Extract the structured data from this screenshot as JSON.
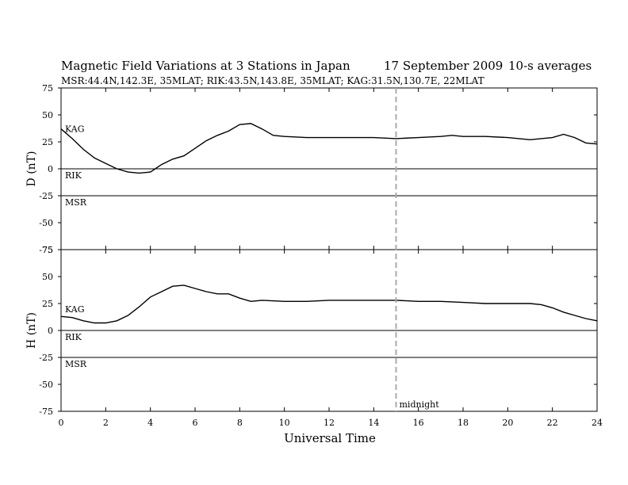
{
  "header": {
    "title": "Magnetic Field Variations at 3 Stations in Japan",
    "date": "17 September 2009",
    "averaging": "10-s averages",
    "stations_line": "MSR:44.4N,142.3E, 35MLAT;  RIK:43.5N,143.8E, 35MLAT;  KAG:31.5N,130.7E, 22MLAT"
  },
  "chart_data": [
    {
      "type": "line",
      "panel": "D",
      "ylabel": "D (nT)",
      "xlabel": "",
      "xlim": [
        0,
        24
      ],
      "ylim": [
        -75,
        75
      ],
      "y_ticks": [
        "75",
        "50",
        "25",
        "0",
        "-25",
        "-50",
        "-75"
      ],
      "x_ticks": [
        "0",
        "2",
        "4",
        "6",
        "8",
        "10",
        "12",
        "14",
        "16",
        "18",
        "20",
        "22",
        "24"
      ],
      "series": [
        {
          "name": "KAG",
          "color": "#000000",
          "x": [
            0,
            0.5,
            1,
            1.5,
            2,
            2.5,
            3,
            3.5,
            4,
            4.5,
            5,
            5.5,
            6,
            6.5,
            7,
            7.5,
            8,
            8.5,
            9,
            9.5,
            10,
            11,
            12,
            13,
            14,
            15,
            16,
            17,
            17.5,
            18,
            19,
            20,
            21,
            22,
            22.5,
            23,
            23.5,
            24
          ],
          "y": [
            37,
            28,
            18,
            10,
            5,
            0,
            -3,
            -4,
            -3,
            4,
            9,
            12,
            19,
            26,
            31,
            35,
            41,
            42,
            37,
            31,
            30,
            29,
            29,
            29,
            29,
            28,
            29,
            30,
            31,
            30,
            30,
            29,
            27,
            29,
            32,
            29,
            24,
            23
          ]
        },
        {
          "name": "RIK",
          "color": "#000000",
          "x": [
            0,
            24
          ],
          "y": [
            0,
            0
          ]
        },
        {
          "name": "MSR",
          "color": "#000000",
          "x": [
            0,
            24
          ],
          "y": [
            -25,
            -25
          ]
        }
      ]
    },
    {
      "type": "line",
      "panel": "H",
      "ylabel": "H (nT)",
      "xlabel": "Universal Time",
      "xlim": [
        0,
        24
      ],
      "ylim": [
        -75,
        75
      ],
      "y_ticks": [
        "75",
        "50",
        "25",
        "0",
        "-25",
        "-50",
        "-75"
      ],
      "x_ticks": [
        "0",
        "2",
        "4",
        "6",
        "8",
        "10",
        "12",
        "14",
        "16",
        "18",
        "20",
        "22",
        "24"
      ],
      "series": [
        {
          "name": "KAG",
          "color": "#000000",
          "x": [
            0,
            0.5,
            1,
            1.5,
            2,
            2.5,
            3,
            3.5,
            4,
            4.5,
            5,
            5.5,
            6,
            6.5,
            7,
            7.5,
            8,
            8.5,
            9,
            10,
            11,
            12,
            13,
            14,
            15,
            16,
            17,
            18,
            19,
            20,
            21,
            21.5,
            22,
            22.5,
            23,
            23.5,
            24
          ],
          "y": [
            13,
            12,
            9,
            7,
            7,
            9,
            14,
            22,
            31,
            36,
            41,
            42,
            39,
            36,
            34,
            34,
            30,
            27,
            28,
            27,
            27,
            28,
            28,
            28,
            28,
            27,
            27,
            26,
            25,
            25,
            25,
            24,
            21,
            17,
            14,
            11,
            9
          ]
        },
        {
          "name": "RIK",
          "color": "#000000",
          "x": [
            0,
            24
          ],
          "y": [
            0,
            0
          ]
        },
        {
          "name": "MSR",
          "color": "#000000",
          "x": [
            0,
            24
          ],
          "y": [
            -25,
            -25
          ]
        }
      ]
    }
  ],
  "annotations": {
    "midnight_label": "midnight",
    "midnight_ut": 15,
    "panel_D_labels": {
      "KAG": 37,
      "RIK": -6,
      "MSR": -31
    },
    "panel_H_labels": {
      "KAG": 20,
      "RIK": -6,
      "MSR": -31
    }
  }
}
